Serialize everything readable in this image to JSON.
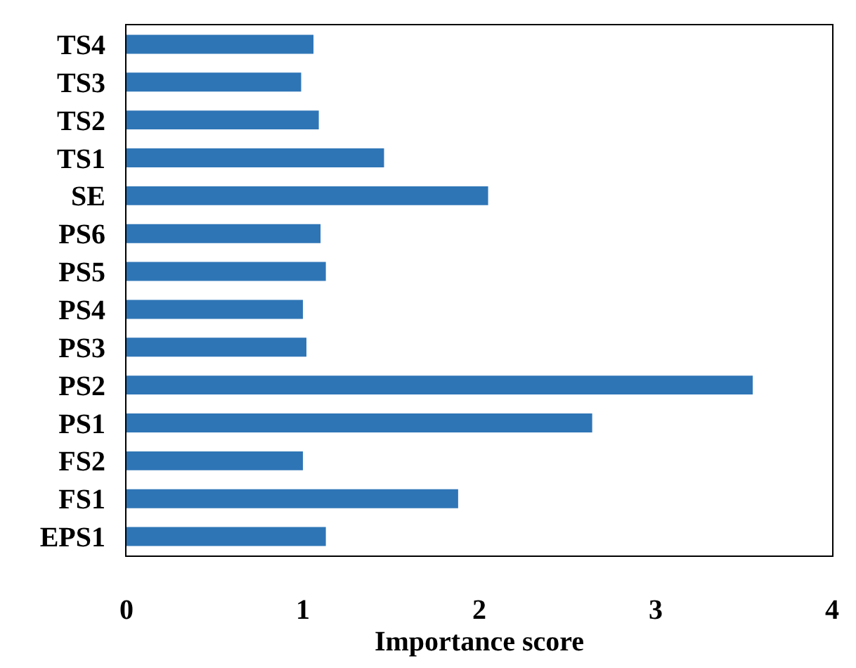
{
  "chart_data": {
    "type": "bar",
    "orientation": "horizontal",
    "xlabel": "Importance score",
    "categories": [
      "TS4",
      "TS3",
      "TS2",
      "TS1",
      "SE",
      "PS6",
      "PS5",
      "PS4",
      "PS3",
      "PS2",
      "PS1",
      "FS2",
      "FS1",
      "EPS1"
    ],
    "values": [
      1.06,
      0.99,
      1.09,
      1.46,
      2.05,
      1.1,
      1.13,
      1.0,
      1.02,
      3.55,
      2.64,
      1.0,
      1.88,
      1.13
    ],
    "color": "#2e75b6",
    "xlim": [
      0,
      4
    ],
    "xticks": [
      0,
      1,
      2,
      3,
      4
    ],
    "grid": false,
    "legend": false
  }
}
